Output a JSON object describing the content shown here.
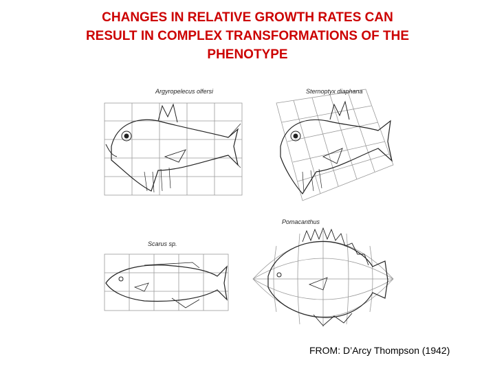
{
  "slide": {
    "title_lines": [
      "CHANGES IN RELATIVE GROWTH RATES CAN",
      "RESULT IN COMPLEX TRANSFORMATIONS OF THE",
      "PHENOTYPE"
    ],
    "credit": "FROM: D’Arcy Thompson (1942)",
    "title_color": "#cc0000"
  },
  "figure": {
    "labels": {
      "panel_1": "Argyropelecus olfersi",
      "panel_2": "Sternoptyx diaphana",
      "panel_3": "Scarus sp.",
      "panel_4": "Pomacanthus"
    }
  }
}
